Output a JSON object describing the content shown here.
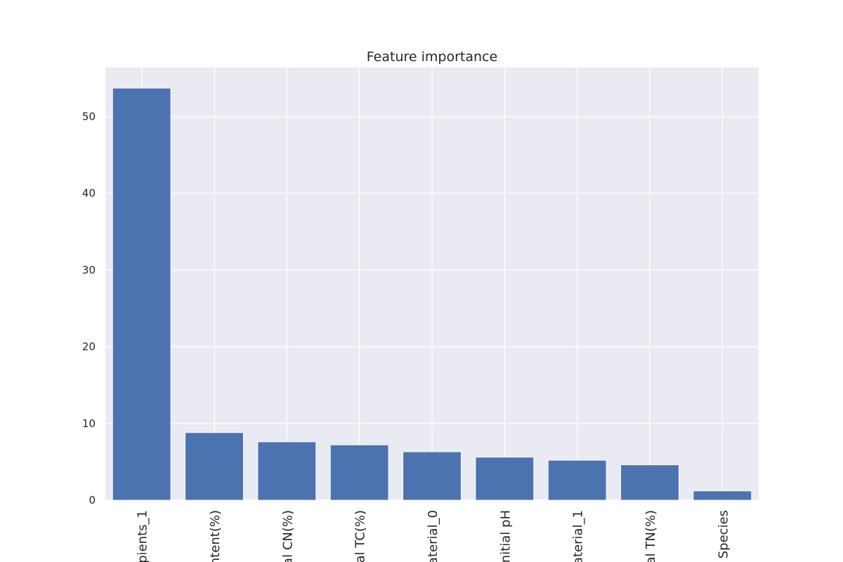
{
  "chart_data": {
    "type": "bar",
    "title": "Feature importance",
    "xlabel": "",
    "ylabel": "",
    "categories": [
      "pients_1",
      "ntent(%)",
      "al CN(%)",
      "al TC(%)",
      "aterial_0",
      "nitial pH",
      "aterial_1",
      "al TN(%)",
      "Species"
    ],
    "values": [
      53.7,
      8.8,
      7.6,
      7.2,
      6.3,
      5.6,
      5.2,
      4.6,
      1.2
    ],
    "yticks": [
      0,
      10,
      20,
      30,
      40,
      50
    ],
    "ylim": [
      0,
      56.4
    ],
    "grid": true,
    "legend": "none",
    "colors": {
      "bar": "#4c72b0",
      "plot_background": "#eaeaf2",
      "grid": "#ffffff",
      "text": "#262626"
    }
  }
}
